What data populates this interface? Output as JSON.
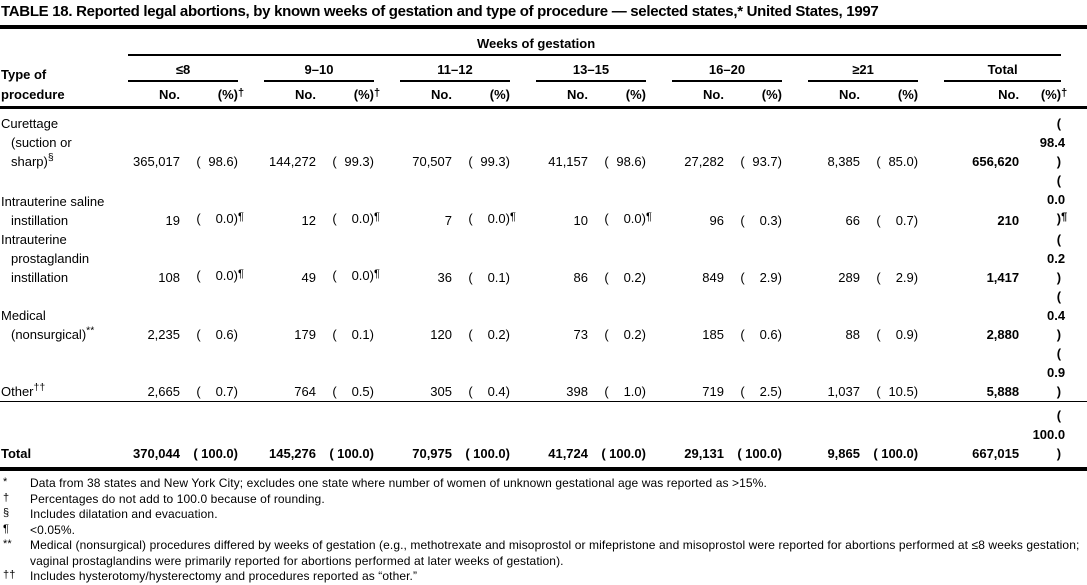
{
  "title": "TABLE 18. Reported legal abortions, by known weeks of gestation and type of procedure — selected states,* United States, 1997",
  "table": {
    "spanner": "Weeks of gestation",
    "stub_head_line1": "Type of",
    "stub_head_line2": "procedure",
    "groups": [
      {
        "label": "≤8",
        "no": "No.",
        "pct": "(%)",
        "pct_mark": "†"
      },
      {
        "label": "9–10",
        "no": "No.",
        "pct": "(%)",
        "pct_mark": "†"
      },
      {
        "label": "11–12",
        "no": "No.",
        "pct": "(%)",
        "pct_mark": ""
      },
      {
        "label": "13–15",
        "no": "No.",
        "pct": "(%)",
        "pct_mark": ""
      },
      {
        "label": "16–20",
        "no": "No.",
        "pct": "(%)",
        "pct_mark": ""
      },
      {
        "label": "≥21",
        "no": "No.",
        "pct": "(%)",
        "pct_mark": ""
      },
      {
        "label": "Total",
        "no": "No.",
        "pct": "(%)",
        "pct_mark": "†"
      }
    ],
    "rows": [
      {
        "label_lines": [
          "Curettage",
          "(suction or",
          "sharp)"
        ],
        "label_sup": "§",
        "cells": [
          {
            "no": "365,017",
            "pct": "98.6",
            "mark": ""
          },
          {
            "no": "144,272",
            "pct": "99.3",
            "mark": ""
          },
          {
            "no": "70,507",
            "pct": "99.3",
            "mark": ""
          },
          {
            "no": "41,157",
            "pct": "98.6",
            "mark": ""
          },
          {
            "no": "27,282",
            "pct": "93.7",
            "mark": ""
          },
          {
            "no": "8,385",
            "pct": "85.0",
            "mark": ""
          },
          {
            "no": "656,620",
            "pct": "98.4",
            "mark": ""
          }
        ]
      },
      {
        "label_lines": [
          "Intrauterine saline",
          "instillation"
        ],
        "label_sup": "",
        "cells": [
          {
            "no": "19",
            "pct": "0.0",
            "mark": "¶"
          },
          {
            "no": "12",
            "pct": "0.0",
            "mark": "¶"
          },
          {
            "no": "7",
            "pct": "0.0",
            "mark": "¶"
          },
          {
            "no": "10",
            "pct": "0.0",
            "mark": "¶"
          },
          {
            "no": "96",
            "pct": "0.3",
            "mark": ""
          },
          {
            "no": "66",
            "pct": "0.7",
            "mark": ""
          },
          {
            "no": "210",
            "pct": "0.0",
            "mark": "¶"
          }
        ]
      },
      {
        "label_lines": [
          "Intrauterine",
          "prostaglandin",
          "instillation"
        ],
        "label_sup": "",
        "cells": [
          {
            "no": "108",
            "pct": "0.0",
            "mark": "¶"
          },
          {
            "no": "49",
            "pct": "0.0",
            "mark": "¶"
          },
          {
            "no": "36",
            "pct": "0.1",
            "mark": ""
          },
          {
            "no": "86",
            "pct": "0.2",
            "mark": ""
          },
          {
            "no": "849",
            "pct": "2.9",
            "mark": ""
          },
          {
            "no": "289",
            "pct": "2.9",
            "mark": ""
          },
          {
            "no": "1,417",
            "pct": "0.2",
            "mark": ""
          }
        ]
      },
      {
        "label_lines": [
          "Medical",
          "(nonsurgical)"
        ],
        "label_sup": "**",
        "cells": [
          {
            "no": "2,235",
            "pct": "0.6",
            "mark": ""
          },
          {
            "no": "179",
            "pct": "0.1",
            "mark": ""
          },
          {
            "no": "120",
            "pct": "0.2",
            "mark": ""
          },
          {
            "no": "73",
            "pct": "0.2",
            "mark": ""
          },
          {
            "no": "185",
            "pct": "0.6",
            "mark": ""
          },
          {
            "no": "88",
            "pct": "0.9",
            "mark": ""
          },
          {
            "no": "2,880",
            "pct": "0.4",
            "mark": ""
          }
        ]
      },
      {
        "label_lines": [
          "Other"
        ],
        "label_sup": "††",
        "cells": [
          {
            "no": "2,665",
            "pct": "0.7",
            "mark": ""
          },
          {
            "no": "764",
            "pct": "0.5",
            "mark": ""
          },
          {
            "no": "305",
            "pct": "0.4",
            "mark": ""
          },
          {
            "no": "398",
            "pct": "1.0",
            "mark": ""
          },
          {
            "no": "719",
            "pct": "2.5",
            "mark": ""
          },
          {
            "no": "1,037",
            "pct": "10.5",
            "mark": ""
          },
          {
            "no": "5,888",
            "pct": "0.9",
            "mark": ""
          }
        ]
      }
    ],
    "total_row": {
      "label": "Total",
      "cells": [
        {
          "no": "370,044",
          "pct": "100.0",
          "mark": ""
        },
        {
          "no": "145,276",
          "pct": "100.0",
          "mark": ""
        },
        {
          "no": "70,975",
          "pct": "100.0",
          "mark": ""
        },
        {
          "no": "41,724",
          "pct": "100.0",
          "mark": ""
        },
        {
          "no": "29,131",
          "pct": "100.0",
          "mark": ""
        },
        {
          "no": "9,865",
          "pct": "100.0",
          "mark": ""
        },
        {
          "no": "667,015",
          "pct": "100.0",
          "mark": ""
        }
      ]
    }
  },
  "footnotes": [
    {
      "mark": "*",
      "text": "Data from 38 states and New York City; excludes one state where number of women of unknown gestational age was reported as >15%."
    },
    {
      "mark": "†",
      "text": "Percentages do not add to 100.0 because of rounding."
    },
    {
      "mark": "§",
      "text": "Includes dilatation and evacuation."
    },
    {
      "mark": "¶",
      "text": "<0.05%."
    },
    {
      "mark": "**",
      "text": "Medical (nonsurgical) procedures differed by weeks of gestation (e.g., methotrexate and misoprostol or mifepristone and misoprostol were reported for abortions performed at ≤8 weeks gestation; vaginal prostaglandins were primarily reported for abortions performed at later weeks of gestation)."
    },
    {
      "mark": "††",
      "text": "Includes hysterotomy/hysterectomy and procedures reported as “other.”"
    }
  ]
}
